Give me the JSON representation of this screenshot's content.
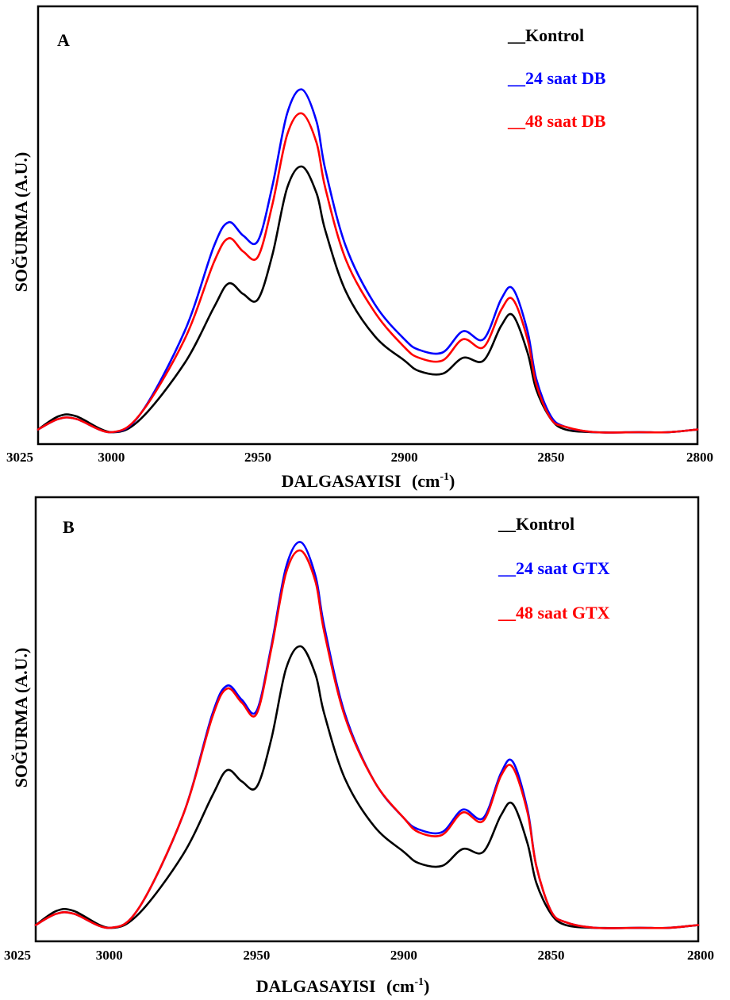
{
  "chart_data": [
    {
      "type": "line",
      "panel_label": "A",
      "xlabel": "DALGASAYISI",
      "xlabel_unit": "(cm",
      "xlabel_unit_exp": "-1",
      "xlabel_unit_close": ")",
      "ylabel": "SOĞURMA (A.U.)",
      "xlim": [
        3025,
        2800
      ],
      "x_ticks": [
        "3025",
        "3000",
        "2950",
        "2900",
        "2850",
        "2800"
      ],
      "y_ticks_shown": false,
      "legend_position": "top-right",
      "series": [
        {
          "name": "__Kontrol",
          "color": "#000000",
          "x": [
            3025,
            3018,
            3012,
            3000,
            2990,
            2975,
            2965,
            2960,
            2955,
            2950,
            2945,
            2940,
            2935,
            2930,
            2927,
            2920,
            2910,
            2900,
            2895,
            2887,
            2880,
            2873,
            2867,
            2863,
            2858,
            2855,
            2850,
            2845,
            2835,
            2820,
            2810,
            2800
          ],
          "y": [
            0.01,
            0.06,
            0.06,
            0.0,
            0.05,
            0.26,
            0.47,
            0.56,
            0.52,
            0.5,
            0.67,
            0.92,
            1.0,
            0.9,
            0.76,
            0.53,
            0.36,
            0.27,
            0.23,
            0.22,
            0.28,
            0.27,
            0.4,
            0.44,
            0.3,
            0.16,
            0.05,
            0.01,
            0.0,
            0.0,
            0.0,
            0.01
          ]
        },
        {
          "name": "__24 saat DB",
          "color": "#0000ff",
          "x": [
            3025,
            3018,
            3012,
            3000,
            2990,
            2975,
            2965,
            2960,
            2955,
            2950,
            2945,
            2940,
            2935,
            2930,
            2927,
            2920,
            2910,
            2900,
            2895,
            2887,
            2880,
            2873,
            2867,
            2863,
            2858,
            2855,
            2850,
            2845,
            2835,
            2820,
            2810,
            2800
          ],
          "y": [
            0.01,
            0.05,
            0.05,
            0.0,
            0.07,
            0.38,
            0.7,
            0.79,
            0.74,
            0.72,
            0.93,
            1.2,
            1.29,
            1.17,
            0.99,
            0.7,
            0.48,
            0.35,
            0.31,
            0.3,
            0.38,
            0.35,
            0.5,
            0.54,
            0.38,
            0.2,
            0.06,
            0.02,
            0.0,
            0.0,
            0.0,
            0.01
          ]
        },
        {
          "name": "__48 saat DB",
          "color": "#ff0000",
          "x": [
            3025,
            3018,
            3012,
            3000,
            2990,
            2975,
            2965,
            2960,
            2955,
            2950,
            2945,
            2940,
            2935,
            2930,
            2927,
            2920,
            2910,
            2900,
            2895,
            2887,
            2880,
            2873,
            2867,
            2863,
            2858,
            2855,
            2850,
            2845,
            2835,
            2820,
            2810,
            2800
          ],
          "y": [
            0.01,
            0.05,
            0.05,
            0.0,
            0.07,
            0.35,
            0.64,
            0.73,
            0.68,
            0.66,
            0.86,
            1.12,
            1.2,
            1.09,
            0.92,
            0.65,
            0.45,
            0.32,
            0.28,
            0.27,
            0.35,
            0.32,
            0.46,
            0.5,
            0.35,
            0.18,
            0.05,
            0.02,
            0.0,
            0.0,
            0.0,
            0.01
          ]
        }
      ]
    },
    {
      "type": "line",
      "panel_label": "B",
      "xlabel": "DALGASAYISI",
      "xlabel_unit": "(cm",
      "xlabel_unit_exp": "-1",
      "xlabel_unit_close": ")",
      "ylabel": "SOĞURMA (A.U.)",
      "xlim": [
        3025,
        2800
      ],
      "x_ticks": [
        "3025",
        "3000",
        "2950",
        "2900",
        "2850",
        "2800"
      ],
      "y_ticks_shown": false,
      "legend_position": "top-right",
      "series": [
        {
          "name": "__Kontrol",
          "color": "#000000",
          "x": [
            3025,
            3018,
            3012,
            3000,
            2990,
            2975,
            2965,
            2960,
            2955,
            2950,
            2945,
            2940,
            2935,
            2930,
            2927,
            2920,
            2910,
            2900,
            2895,
            2887,
            2880,
            2873,
            2867,
            2863,
            2858,
            2855,
            2850,
            2845,
            2835,
            2820,
            2810,
            2800
          ],
          "y": [
            0.01,
            0.06,
            0.06,
            0.0,
            0.05,
            0.26,
            0.47,
            0.56,
            0.52,
            0.5,
            0.67,
            0.92,
            1.0,
            0.9,
            0.76,
            0.53,
            0.36,
            0.27,
            0.23,
            0.22,
            0.28,
            0.27,
            0.4,
            0.44,
            0.3,
            0.16,
            0.05,
            0.01,
            0.0,
            0.0,
            0.0,
            0.01
          ]
        },
        {
          "name": "__24 saat GTX",
          "color": "#0000ff",
          "x": [
            3025,
            3018,
            3012,
            3000,
            2990,
            2975,
            2965,
            2960,
            2955,
            2950,
            2945,
            2940,
            2935,
            2930,
            2927,
            2920,
            2910,
            2900,
            2895,
            2887,
            2880,
            2873,
            2867,
            2863,
            2858,
            2855,
            2850,
            2845,
            2835,
            2820,
            2810,
            2800
          ],
          "y": [
            0.01,
            0.05,
            0.05,
            0.0,
            0.07,
            0.4,
            0.76,
            0.86,
            0.81,
            0.77,
            1.0,
            1.28,
            1.37,
            1.25,
            1.07,
            0.76,
            0.52,
            0.39,
            0.35,
            0.34,
            0.42,
            0.39,
            0.55,
            0.59,
            0.42,
            0.22,
            0.06,
            0.02,
            0.0,
            0.0,
            0.0,
            0.01
          ]
        },
        {
          "name": "__48 saat GTX",
          "color": "#ff0000",
          "x": [
            3025,
            3018,
            3012,
            3000,
            2990,
            2975,
            2965,
            2960,
            2955,
            2950,
            2945,
            2940,
            2935,
            2930,
            2927,
            2920,
            2910,
            2900,
            2895,
            2887,
            2880,
            2873,
            2867,
            2863,
            2858,
            2855,
            2850,
            2845,
            2835,
            2820,
            2810,
            2800
          ],
          "y": [
            0.01,
            0.05,
            0.05,
            0.0,
            0.07,
            0.4,
            0.75,
            0.85,
            0.8,
            0.76,
            0.99,
            1.26,
            1.34,
            1.23,
            1.05,
            0.75,
            0.52,
            0.39,
            0.34,
            0.33,
            0.41,
            0.38,
            0.54,
            0.57,
            0.41,
            0.22,
            0.06,
            0.02,
            0.0,
            0.0,
            0.0,
            0.01
          ]
        }
      ]
    }
  ]
}
